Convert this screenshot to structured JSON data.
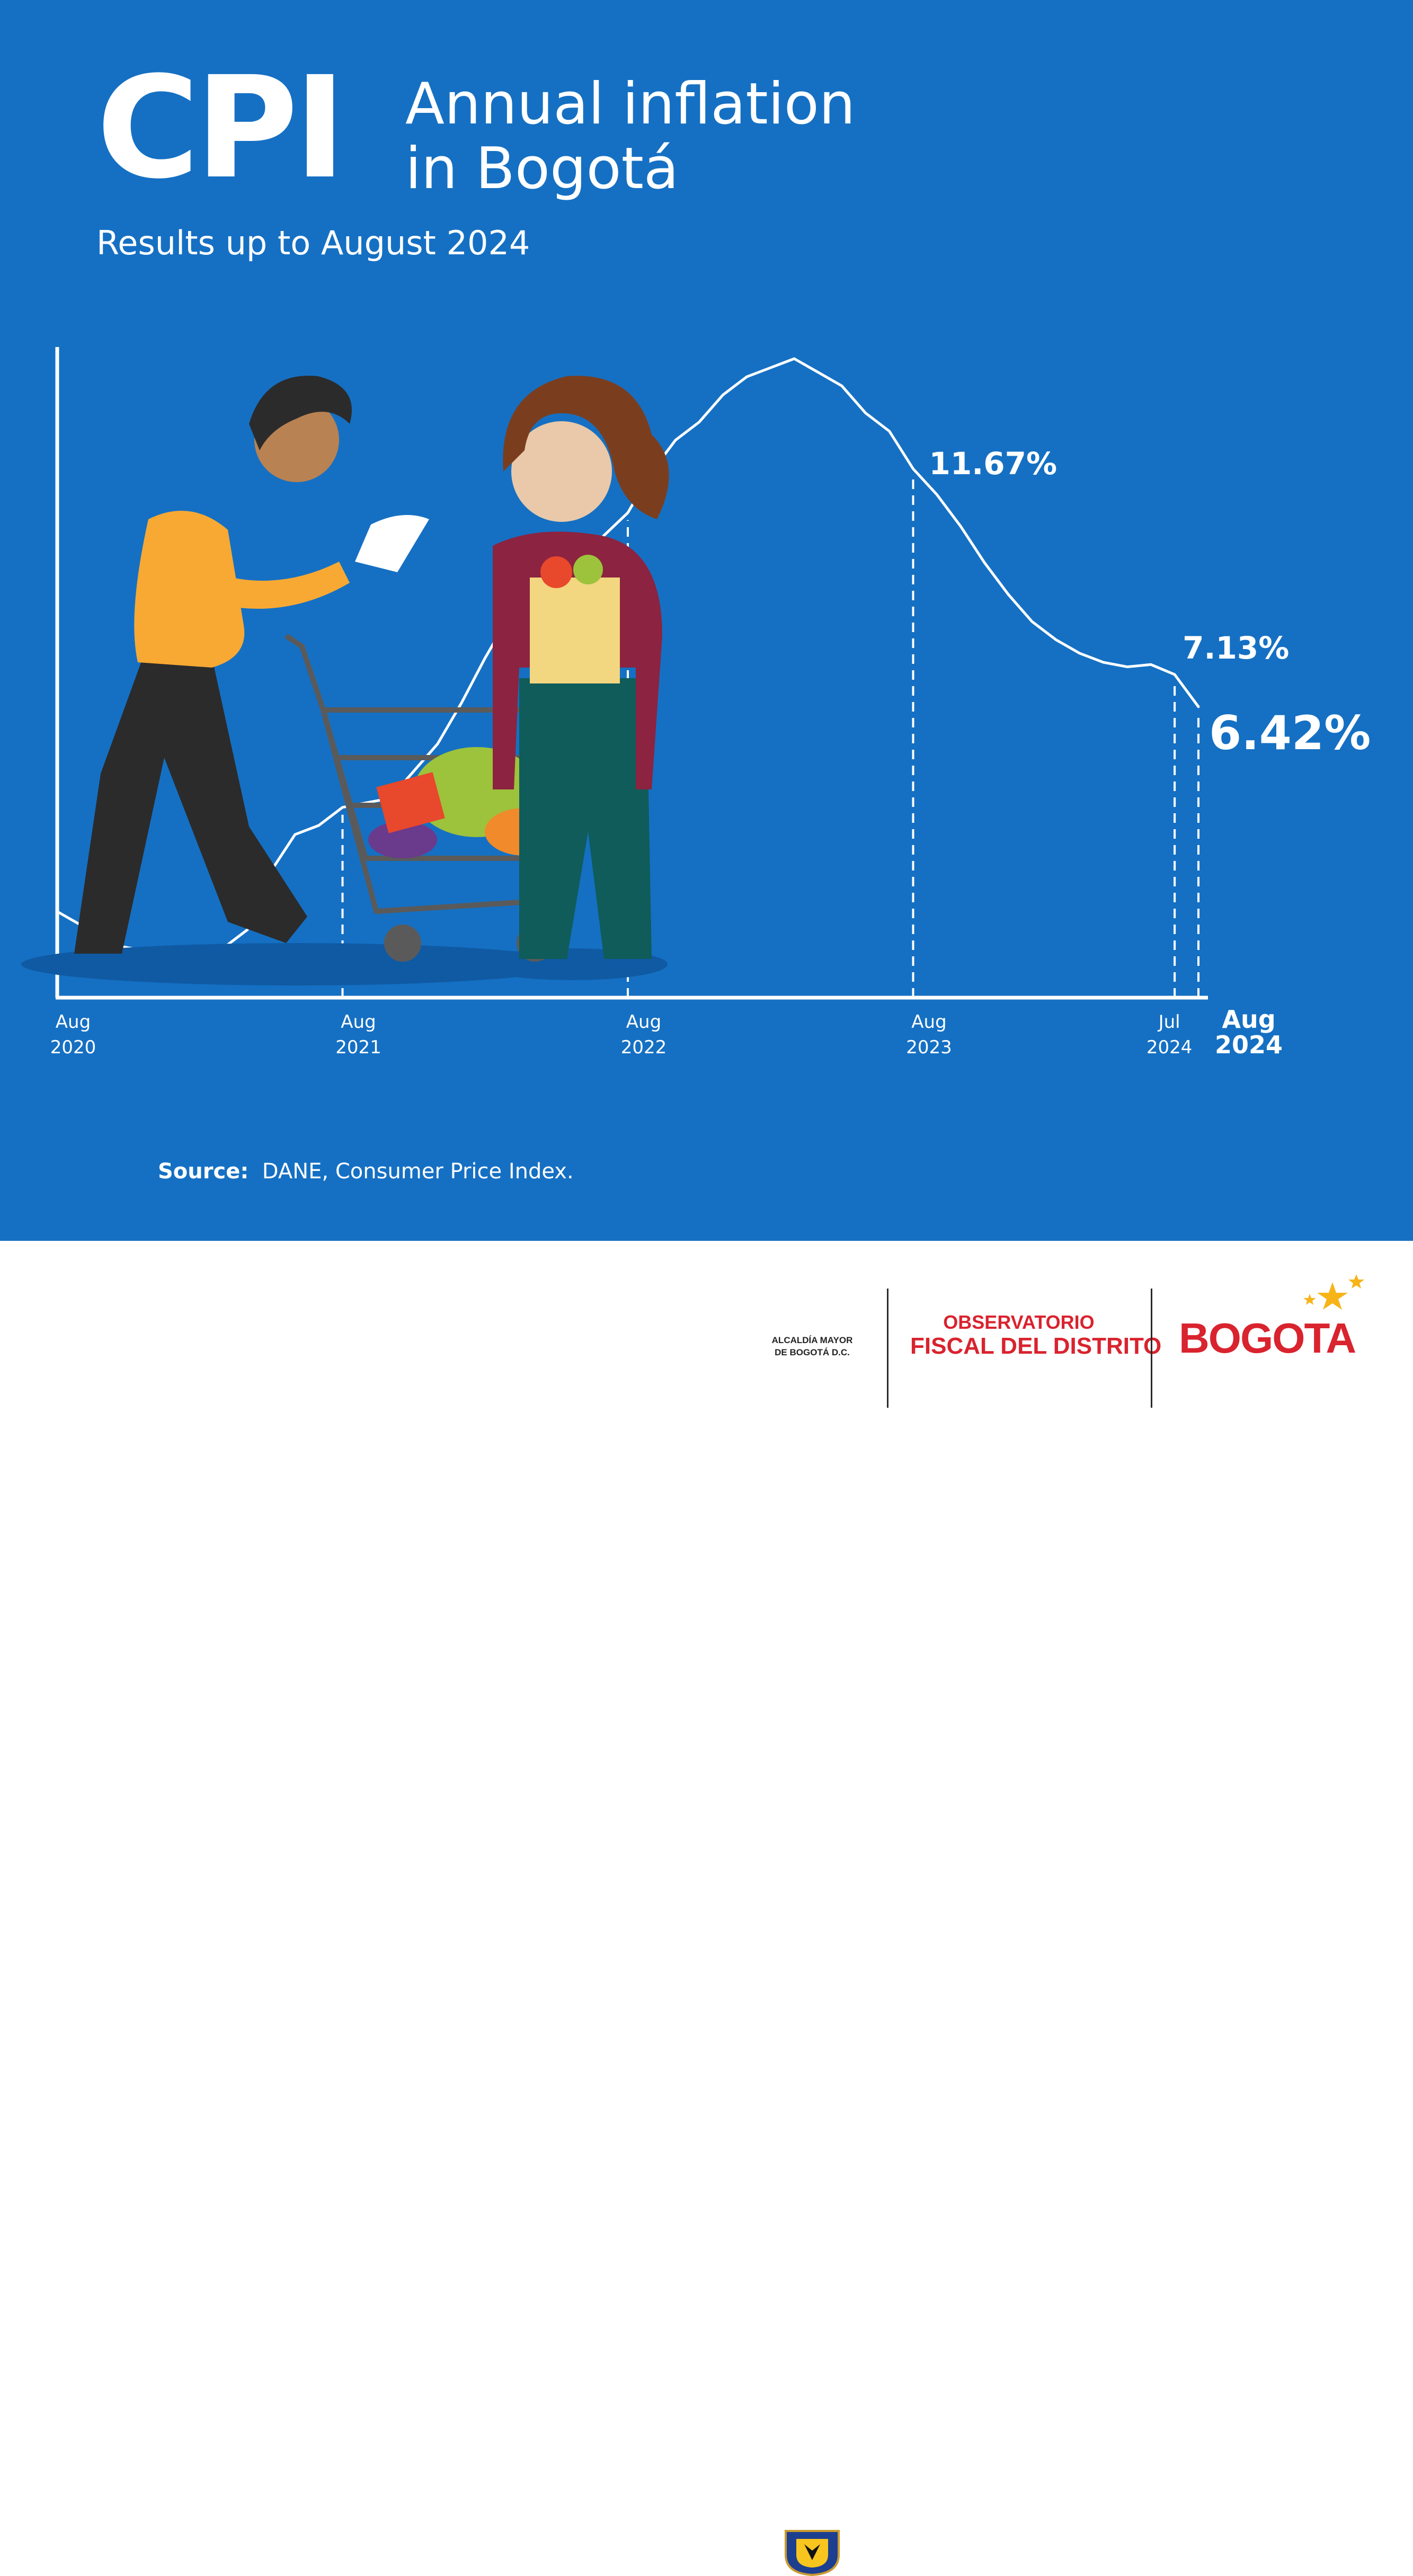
{
  "header": {
    "cpi_label": "CPI",
    "title_line1": "Annual inflation",
    "title_line2": "in Bogotá",
    "subtitle": "Results up to August 2024"
  },
  "chart_data": {
    "type": "line",
    "title": "Annual inflation in Bogotá",
    "x": [
      "Aug 2020",
      "Sep 2020",
      "Oct 2020",
      "Nov 2020",
      "Dec 2020",
      "Jan 2021",
      "Feb 2021",
      "Mar 2021",
      "Apr 2021",
      "May 2021",
      "Jun 2021",
      "Jul 2021",
      "Aug 2021",
      "Sep 2021",
      "Oct 2021",
      "Nov 2021",
      "Dec 2021",
      "Jan 2022",
      "Feb 2022",
      "Mar 2022",
      "Apr 2022",
      "May 2022",
      "Jun 2022",
      "Jul 2022",
      "Aug 2022",
      "Sep 2022",
      "Oct 2022",
      "Nov 2022",
      "Dec 2022",
      "Jan 2023",
      "Feb 2023",
      "Mar 2023",
      "Apr 2023",
      "May 2023",
      "Jun 2023",
      "Jul 2023",
      "Aug 2023",
      "Sep 2023",
      "Oct 2023",
      "Nov 2023",
      "Dec 2023",
      "Jan 2024",
      "Feb 2024",
      "Mar 2024",
      "Apr 2024",
      "May 2024",
      "Jun 2024",
      "Jul 2024",
      "Aug 2024"
    ],
    "values": [
      1.9,
      1.6,
      1.2,
      1.1,
      1.0,
      1.0,
      0.9,
      1.1,
      1.5,
      2.8,
      3.6,
      3.8,
      4.2,
      4.3,
      4.4,
      5.0,
      5.6,
      6.5,
      7.5,
      8.4,
      9.1,
      9.2,
      9.7,
      10.2,
      10.7,
      11.6,
      12.3,
      12.7,
      13.3,
      13.7,
      13.9,
      14.1,
      13.8,
      13.5,
      12.9,
      12.5,
      11.67,
      11.1,
      10.4,
      9.6,
      8.9,
      8.3,
      7.9,
      7.6,
      7.4,
      7.3,
      7.35,
      7.13,
      6.42
    ],
    "tick_labels": [
      {
        "month": "Aug",
        "year": "2020"
      },
      {
        "month": "Aug",
        "year": "2021"
      },
      {
        "month": "Aug",
        "year": "2022"
      },
      {
        "month": "Aug",
        "year": "2023"
      },
      {
        "month": "Jul",
        "year": "2024"
      },
      {
        "month": "Aug",
        "year": "2024"
      }
    ],
    "annotations": [
      {
        "x": "Aug 2023",
        "text": "11.67%"
      },
      {
        "x": "Jul 2024",
        "text": "7.13%"
      },
      {
        "x": "Aug 2024",
        "text": "6.42%"
      }
    ],
    "ylim": [
      0,
      15
    ],
    "grid": false,
    "line_color": "#ffffff",
    "background": "#1570c3"
  },
  "source": {
    "label": "Source:",
    "text": "DANE, Consumer Price Index."
  },
  "footer": {
    "alcaldia_line1": "ALCALDÍA MAYOR",
    "alcaldia_line2": "DE BOGOTÁ D.C.",
    "observatorio_line1": "OBSERVATORIO",
    "observatorio_line2": "FISCAL DEL DISTRITO",
    "bogota_logo": "BOGOTA",
    "accent_color": "#d9232e",
    "star_color": "#f7b418"
  }
}
